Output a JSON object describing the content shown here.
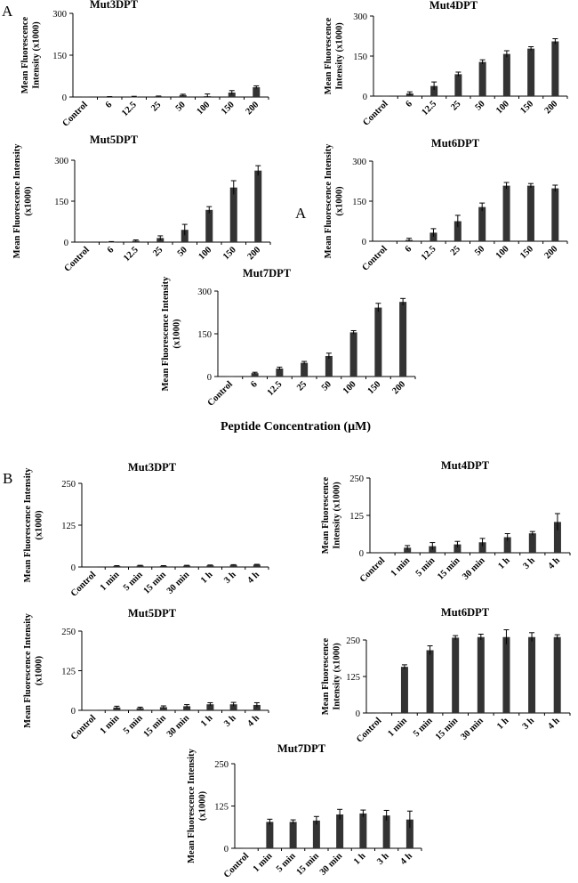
{
  "figure": {
    "panel_a_label": "A",
    "panel_b_label": "B",
    "stray_label": "A",
    "x_caption_a": "Peptide Concentration (µM)",
    "bar_color": "#333333"
  },
  "chart_data": [
    {
      "id": "a-mut3",
      "type": "bar",
      "title": "Mut3DPT",
      "ylabel": [
        "Mean Fluorescence",
        "Intensity (x1000)"
      ],
      "categories": [
        "Control",
        "6",
        "12.5",
        "25",
        "50",
        "100",
        "150",
        "200"
      ],
      "values": [
        0,
        0.5,
        1.5,
        2.5,
        7,
        3,
        16,
        35
      ],
      "errors": [
        0,
        1,
        1,
        1,
        3,
        8,
        7,
        5
      ],
      "ylim": [
        0,
        300
      ],
      "yticks": [
        "0",
        "150",
        "300"
      ]
    },
    {
      "id": "a-mut4",
      "type": "bar",
      "title": "Mut4DPT",
      "ylabel": [
        "Mean Fluorescence",
        "Intensity (x1000)"
      ],
      "categories": [
        "Control",
        "6",
        "12.5",
        "25",
        "50",
        "100",
        "150",
        "200"
      ],
      "values": [
        0,
        10,
        38,
        82,
        128,
        158,
        178,
        205
      ],
      "errors": [
        0,
        6,
        15,
        8,
        8,
        12,
        7,
        10
      ],
      "ylim": [
        0,
        300
      ],
      "yticks": [
        "0",
        "150",
        "300"
      ]
    },
    {
      "id": "a-mut5",
      "type": "bar",
      "title": "Mut5DPT",
      "ylabel": [
        "Mean Fluorescence Intensity",
        "(x1000)"
      ],
      "categories": [
        "Control",
        "6",
        "12.5",
        "25",
        "50",
        "100",
        "150",
        "200"
      ],
      "values": [
        0,
        1,
        5,
        15,
        45,
        118,
        200,
        262
      ],
      "errors": [
        0,
        1,
        3,
        8,
        20,
        12,
        25,
        18
      ],
      "ylim": [
        0,
        300
      ],
      "yticks": [
        "0",
        "150",
        "300"
      ]
    },
    {
      "id": "a-mut6",
      "type": "bar",
      "title": "Mut6DPT",
      "ylabel": [
        "Mean Fluorescence Intensity",
        "(x1000)"
      ],
      "categories": [
        "Control",
        "6",
        "12.5",
        "25",
        "50",
        "100",
        "150",
        "200"
      ],
      "values": [
        0,
        5,
        32,
        75,
        128,
        208,
        208,
        198
      ],
      "errors": [
        0,
        6,
        15,
        22,
        15,
        12,
        8,
        12
      ],
      "ylim": [
        0,
        300
      ],
      "yticks": [
        "0",
        "150",
        "300"
      ]
    },
    {
      "id": "a-mut7",
      "type": "bar",
      "title": "Mut7DPT",
      "ylabel": [
        "Mean Fluorescence Intensity",
        "(x1000)"
      ],
      "categories": [
        "Control",
        "6",
        "12.5",
        "25",
        "50",
        "100",
        "150",
        "200"
      ],
      "values": [
        0,
        12,
        28,
        48,
        72,
        155,
        242,
        262
      ],
      "errors": [
        0,
        3,
        5,
        5,
        10,
        6,
        15,
        12
      ],
      "ylim": [
        0,
        300
      ],
      "yticks": [
        "0",
        "150",
        "300"
      ]
    },
    {
      "id": "b-mut3",
      "type": "bar",
      "title": "Mut3DPT",
      "ylabel": [
        "Mean Fluorescence Intensity",
        "(x1000)"
      ],
      "categories": [
        "Control",
        "1 min",
        "5 min",
        "15 min",
        "30 min",
        "1 h",
        "3 h",
        "4 h"
      ],
      "values": [
        0,
        3,
        4,
        3,
        4,
        5,
        6,
        7
      ],
      "errors": [
        0,
        1,
        1,
        1,
        1,
        1,
        1,
        1
      ],
      "ylim": [
        0,
        250
      ],
      "yticks": [
        "0",
        "125",
        "250"
      ]
    },
    {
      "id": "b-mut4",
      "type": "bar",
      "title": "Mut4DPT",
      "ylabel": [
        "Mean Fluorescence",
        "Intensity (x1000)"
      ],
      "categories": [
        "Control",
        "1 min",
        "5 min",
        "15 min",
        "30 min",
        "1 h",
        "3 h",
        "4 h"
      ],
      "values": [
        0,
        17,
        22,
        28,
        35,
        52,
        65,
        103
      ],
      "errors": [
        0,
        7,
        12,
        10,
        13,
        12,
        6,
        28
      ],
      "ylim": [
        0,
        250
      ],
      "yticks": [
        "0",
        "125",
        "250"
      ]
    },
    {
      "id": "b-mut5",
      "type": "bar",
      "title": "Mut5DPT",
      "ylabel": [
        "Mean Fluorescence Intensity",
        "(x1000)"
      ],
      "categories": [
        "Control",
        "1 min",
        "5 min",
        "15 min",
        "30 min",
        "1 h",
        "3 h",
        "4 h"
      ],
      "values": [
        0,
        9,
        7,
        10,
        13,
        19,
        19,
        17
      ],
      "errors": [
        0,
        4,
        3,
        4,
        5,
        5,
        6,
        7
      ],
      "ylim": [
        0,
        250
      ],
      "yticks": [
        "0",
        "125",
        "250"
      ]
    },
    {
      "id": "b-mut6",
      "type": "bar",
      "title": "Mut6DPT",
      "ylabel": [
        "Mean Fluorescence",
        "Intensity (x1000)"
      ],
      "categories": [
        "Control",
        "1 min",
        "5 min",
        "15 min",
        "30 min",
        "1 h",
        "3 h",
        "4 h"
      ],
      "values": [
        0,
        158,
        215,
        258,
        260,
        260,
        260,
        260
      ],
      "errors": [
        0,
        7,
        15,
        7,
        10,
        25,
        15,
        8
      ],
      "ylim": [
        0,
        250
      ],
      "yticks": [
        "0",
        "125",
        "250"
      ]
    },
    {
      "id": "b-mut7",
      "type": "bar",
      "title": "Mut7DPT",
      "ylabel": [
        "Mean Fluorescence Intensity",
        "(x1000)"
      ],
      "categories": [
        "Control",
        "1 min",
        "5 min",
        "15 min",
        "30 min",
        "1 h",
        "3 h",
        "4 h"
      ],
      "values": [
        0,
        78,
        78,
        82,
        100,
        103,
        97,
        85
      ],
      "errors": [
        0,
        8,
        6,
        12,
        15,
        10,
        15,
        25
      ],
      "ylim": [
        0,
        250
      ],
      "yticks": [
        "0",
        "125",
        "250"
      ]
    }
  ]
}
